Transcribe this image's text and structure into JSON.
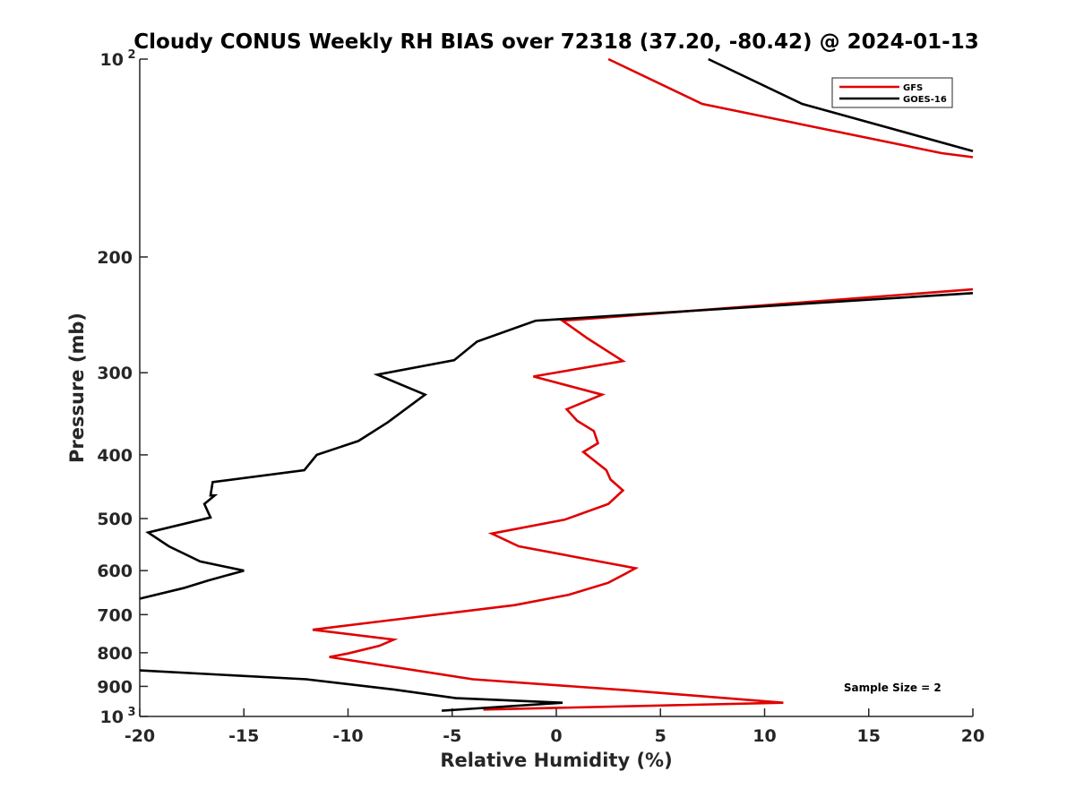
{
  "chart_data": {
    "type": "line",
    "title": "Cloudy CONUS Weekly RH BIAS over 72318 (37.20, -80.42) @ 2024-01-13",
    "xlabel": "Relative Humidity (%)",
    "ylabel": "Pressure (mb)",
    "xlim": [
      -20,
      20
    ],
    "ylim": [
      100,
      1000
    ],
    "yscale": "log",
    "y_reversed": true,
    "grid": false,
    "x_ticks": [
      "-20",
      "-15",
      "-10",
      "-5",
      "0",
      "5",
      "10",
      "15",
      "20"
    ],
    "y_ticks": [
      {
        "value": 100,
        "base": "10",
        "exp": "2"
      },
      {
        "value": 200,
        "label": "200"
      },
      {
        "value": 300,
        "label": "300"
      },
      {
        "value": 400,
        "label": "400"
      },
      {
        "value": 500,
        "label": "500"
      },
      {
        "value": 600,
        "label": "600"
      },
      {
        "value": 700,
        "label": "700"
      },
      {
        "value": 800,
        "label": "800"
      },
      {
        "value": 900,
        "label": "900"
      },
      {
        "value": 1000,
        "base": "10",
        "exp": "3"
      }
    ],
    "legend_position": "top-right",
    "series": [
      {
        "name": "GFS",
        "color": "#e00000",
        "segments": [
          [
            [
              2.5,
              100
            ],
            [
              7,
              117
            ],
            [
              18.5,
              139
            ],
            [
              20,
              141
            ]
          ],
          [
            [
              20,
              224
            ],
            [
              0.3,
              250
            ],
            [
              1.5,
              266
            ],
            [
              3.2,
              288
            ],
            [
              -1.1,
              304
            ],
            [
              2.2,
              324
            ],
            [
              0.5,
              341
            ],
            [
              1,
              355
            ],
            [
              1.8,
              368
            ],
            [
              2,
              384
            ],
            [
              1.3,
              396
            ],
            [
              2.4,
              422
            ],
            [
              2.6,
              436
            ],
            [
              3.2,
              453
            ],
            [
              2.5,
              475
            ],
            [
              0.4,
              502
            ],
            [
              -3.1,
              527
            ],
            [
              -1.8,
              551
            ],
            [
              3.8,
              595
            ],
            [
              3.3,
              607
            ],
            [
              2.5,
              626
            ],
            [
              0.6,
              653
            ],
            [
              -2,
              677
            ],
            [
              -8.5,
              717
            ],
            [
              -11.7,
              738
            ],
            [
              -7.8,
              764
            ],
            [
              -8.5,
              781
            ],
            [
              -10,
              802
            ],
            [
              -10.9,
              812
            ],
            [
              -4,
              878
            ],
            [
              3.3,
              912
            ],
            [
              10.9,
              953
            ],
            [
              -3.5,
              976
            ]
          ]
        ]
      },
      {
        "name": "GOES-16",
        "color": "#000000",
        "segments": [
          [
            [
              7.3,
              100
            ],
            [
              11.8,
              117
            ],
            [
              20,
              138
            ]
          ],
          [
            [
              20,
              227
            ],
            [
              -1,
              250
            ],
            [
              -3.8,
              269
            ],
            [
              -4.9,
              287
            ],
            [
              -8.6,
              302
            ],
            [
              -6.3,
              324
            ],
            [
              -8.1,
              357
            ],
            [
              -9.5,
              381
            ],
            [
              -11.5,
              400
            ],
            [
              -12.1,
              422
            ],
            [
              -16.5,
              440
            ],
            [
              -16.6,
              461
            ],
            [
              -16.4,
              461
            ],
            [
              -16.9,
              475
            ],
            [
              -16.6,
              498
            ],
            [
              -19.6,
              525
            ],
            [
              -18.6,
              551
            ],
            [
              -17.1,
              581
            ],
            [
              -15,
              600
            ],
            [
              -16.7,
              621
            ],
            [
              -17.9,
              638
            ],
            [
              -20,
              662
            ]
          ],
          [
            [
              -20,
              851
            ],
            [
              -12,
              878
            ],
            [
              -7.8,
              910
            ],
            [
              -4.8,
              938
            ],
            [
              0.3,
              953
            ],
            [
              -5.5,
              980
            ]
          ]
        ]
      }
    ],
    "annotations": [
      {
        "text": "Sample Size = 2",
        "x": 13.8,
        "y": 905
      }
    ]
  }
}
